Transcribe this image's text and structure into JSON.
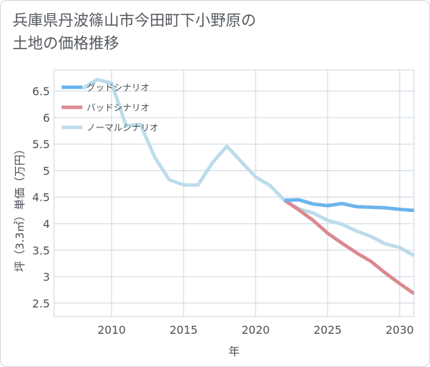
{
  "title_lines": [
    "兵庫県丹波篠山市今田町下小野原の",
    "土地の価格推移"
  ],
  "chart_data": {
    "type": "line",
    "title": "兵庫県丹波篠山市今田町下小野原の土地の価格推移",
    "xlabel": "年",
    "ylabel": "坪（3.3㎡）単価（万円）",
    "xlim": [
      2006,
      2031
    ],
    "ylim": [
      2.25,
      6.9
    ],
    "xticks": [
      2010,
      2015,
      2020,
      2025,
      2030
    ],
    "yticks": [
      2.5,
      3,
      3.5,
      4,
      4.5,
      5,
      5.5,
      6,
      6.5
    ],
    "xtick_labels": [
      "2010",
      "2015",
      "2020",
      "2025",
      "2030"
    ],
    "ytick_labels": [
      "2.5",
      "3",
      "3.5",
      "4",
      "4.5",
      "5",
      "5.5",
      "6",
      "6.5"
    ],
    "grid": true,
    "legend_position": "top-left",
    "series": [
      {
        "name": "グッドシナリオ",
        "color": "#6ab4ec",
        "x": [
          2022,
          2023,
          2024,
          2025,
          2026,
          2027,
          2028,
          2029,
          2030,
          2031
        ],
        "values": [
          4.44,
          4.45,
          4.37,
          4.34,
          4.38,
          4.32,
          4.31,
          4.3,
          4.27,
          4.25
        ]
      },
      {
        "name": "バッドシナリオ",
        "color": "#da8a90",
        "x": [
          2022,
          2023,
          2024,
          2025,
          2026,
          2027,
          2028,
          2029,
          2030,
          2031
        ],
        "values": [
          4.44,
          4.26,
          4.06,
          3.82,
          3.63,
          3.45,
          3.29,
          3.07,
          2.87,
          2.68
        ]
      },
      {
        "name": "ノーマルシナリオ",
        "color": "#bcdceb",
        "x": [
          2008,
          2009,
          2010,
          2011,
          2012,
          2013,
          2014,
          2015,
          2016,
          2017,
          2018,
          2019,
          2020,
          2021,
          2022,
          2023,
          2024,
          2025,
          2026,
          2027,
          2028,
          2029,
          2030,
          2031
        ],
        "values": [
          6.55,
          6.72,
          6.65,
          5.85,
          5.87,
          5.25,
          4.83,
          4.73,
          4.73,
          5.15,
          5.46,
          5.17,
          4.88,
          4.72,
          4.44,
          4.28,
          4.2,
          4.06,
          3.99,
          3.86,
          3.76,
          3.62,
          3.55,
          3.4
        ]
      }
    ]
  }
}
